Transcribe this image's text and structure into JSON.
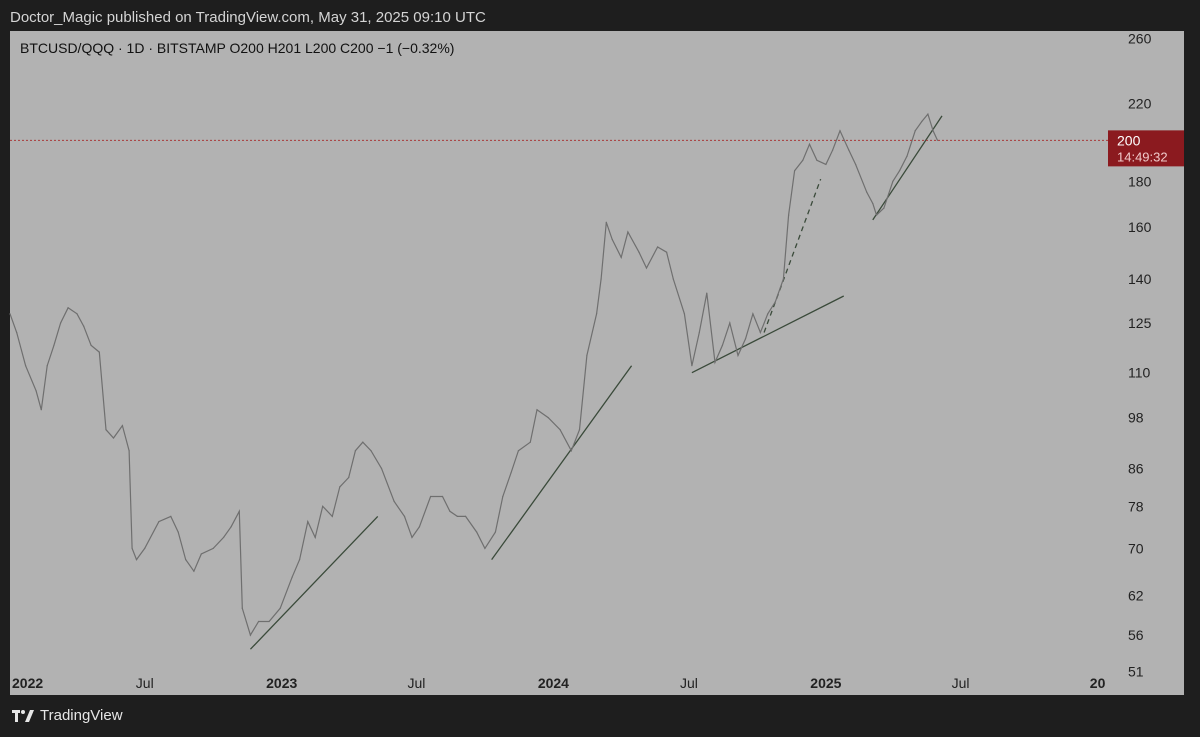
{
  "header": {
    "published": "Doctor_Magic published on TradingView.com, May 31, 2025 09:10 UTC"
  },
  "footer": {
    "brand": "TradingView",
    "logo_icon": "tradingview-logo-icon"
  },
  "colors": {
    "page_bg": "#1e1e1e",
    "chart_bg": "#b2b2b2",
    "price_line": "#6f6f6f",
    "trendline": "#3a4a3a",
    "last_price_bg": "#8b1a1f",
    "last_price_line": "#a83a3a"
  },
  "chart_data": {
    "type": "line",
    "title": "BTCUSD/QQQ · 1D · BITSTAMP  O200  H201  L200  C200  −1 (−0.32%)",
    "y_scale": "log",
    "ylim": [
      48,
      265
    ],
    "xlim": [
      "2022-01-01",
      "2026-01-15"
    ],
    "grid": false,
    "y_ticks": [
      260,
      220,
      200,
      180,
      160,
      140,
      125,
      110,
      98,
      86,
      78,
      70,
      62,
      56,
      51
    ],
    "x_ticks": [
      {
        "date": "2022-01-01",
        "label": "2022",
        "bold": true
      },
      {
        "date": "2022-07-01",
        "label": "Jul",
        "bold": false
      },
      {
        "date": "2023-01-01",
        "label": "2023",
        "bold": true
      },
      {
        "date": "2023-07-01",
        "label": "Jul",
        "bold": false
      },
      {
        "date": "2024-01-01",
        "label": "2024",
        "bold": true
      },
      {
        "date": "2024-07-01",
        "label": "Jul",
        "bold": false
      },
      {
        "date": "2025-01-01",
        "label": "2025",
        "bold": true
      },
      {
        "date": "2025-07-01",
        "label": "Jul",
        "bold": false
      },
      {
        "date": "2026-01-01",
        "label": "20",
        "bold": true
      }
    ],
    "last_price": {
      "value": 200,
      "label": "200",
      "countdown": "14:49:32"
    },
    "series": [
      {
        "values": [
          {
            "x": "2022-01-01",
            "y": 128
          },
          {
            "x": "2022-01-10",
            "y": 122
          },
          {
            "x": "2022-01-22",
            "y": 112
          },
          {
            "x": "2022-02-05",
            "y": 105
          },
          {
            "x": "2022-02-12",
            "y": 100
          },
          {
            "x": "2022-02-20",
            "y": 112
          },
          {
            "x": "2022-03-01",
            "y": 118
          },
          {
            "x": "2022-03-10",
            "y": 125
          },
          {
            "x": "2022-03-20",
            "y": 130
          },
          {
            "x": "2022-04-01",
            "y": 128
          },
          {
            "x": "2022-04-10",
            "y": 124
          },
          {
            "x": "2022-04-20",
            "y": 118
          },
          {
            "x": "2022-05-01",
            "y": 116
          },
          {
            "x": "2022-05-10",
            "y": 95
          },
          {
            "x": "2022-05-20",
            "y": 93
          },
          {
            "x": "2022-06-01",
            "y": 96
          },
          {
            "x": "2022-06-10",
            "y": 90
          },
          {
            "x": "2022-06-14",
            "y": 70
          },
          {
            "x": "2022-06-20",
            "y": 68
          },
          {
            "x": "2022-07-01",
            "y": 70
          },
          {
            "x": "2022-07-20",
            "y": 75
          },
          {
            "x": "2022-08-05",
            "y": 76
          },
          {
            "x": "2022-08-15",
            "y": 73
          },
          {
            "x": "2022-08-25",
            "y": 68
          },
          {
            "x": "2022-09-05",
            "y": 66
          },
          {
            "x": "2022-09-15",
            "y": 69
          },
          {
            "x": "2022-10-01",
            "y": 70
          },
          {
            "x": "2022-10-15",
            "y": 72
          },
          {
            "x": "2022-10-25",
            "y": 74
          },
          {
            "x": "2022-11-05",
            "y": 77
          },
          {
            "x": "2022-11-09",
            "y": 60
          },
          {
            "x": "2022-11-20",
            "y": 56
          },
          {
            "x": "2022-12-01",
            "y": 58
          },
          {
            "x": "2022-12-15",
            "y": 58
          },
          {
            "x": "2022-12-30",
            "y": 60
          },
          {
            "x": "2023-01-15",
            "y": 65
          },
          {
            "x": "2023-01-25",
            "y": 68
          },
          {
            "x": "2023-02-05",
            "y": 75
          },
          {
            "x": "2023-02-15",
            "y": 72
          },
          {
            "x": "2023-02-25",
            "y": 78
          },
          {
            "x": "2023-03-10",
            "y": 76
          },
          {
            "x": "2023-03-20",
            "y": 82
          },
          {
            "x": "2023-04-01",
            "y": 84
          },
          {
            "x": "2023-04-10",
            "y": 90
          },
          {
            "x": "2023-04-20",
            "y": 92
          },
          {
            "x": "2023-05-01",
            "y": 90
          },
          {
            "x": "2023-05-15",
            "y": 86
          },
          {
            "x": "2023-06-01",
            "y": 79
          },
          {
            "x": "2023-06-15",
            "y": 76
          },
          {
            "x": "2023-06-25",
            "y": 72
          },
          {
            "x": "2023-07-05",
            "y": 74
          },
          {
            "x": "2023-07-20",
            "y": 80
          },
          {
            "x": "2023-08-05",
            "y": 80
          },
          {
            "x": "2023-08-15",
            "y": 77
          },
          {
            "x": "2023-08-25",
            "y": 76
          },
          {
            "x": "2023-09-05",
            "y": 76
          },
          {
            "x": "2023-09-20",
            "y": 73
          },
          {
            "x": "2023-10-01",
            "y": 70
          },
          {
            "x": "2023-10-15",
            "y": 73
          },
          {
            "x": "2023-10-25",
            "y": 80
          },
          {
            "x": "2023-11-05",
            "y": 85
          },
          {
            "x": "2023-11-15",
            "y": 90
          },
          {
            "x": "2023-12-01",
            "y": 92
          },
          {
            "x": "2023-12-10",
            "y": 100
          },
          {
            "x": "2023-12-25",
            "y": 98
          },
          {
            "x": "2024-01-10",
            "y": 95
          },
          {
            "x": "2024-01-25",
            "y": 90
          },
          {
            "x": "2024-02-05",
            "y": 95
          },
          {
            "x": "2024-02-15",
            "y": 115
          },
          {
            "x": "2024-02-28",
            "y": 128
          },
          {
            "x": "2024-03-05",
            "y": 140
          },
          {
            "x": "2024-03-12",
            "y": 162
          },
          {
            "x": "2024-03-20",
            "y": 155
          },
          {
            "x": "2024-04-01",
            "y": 148
          },
          {
            "x": "2024-04-10",
            "y": 158
          },
          {
            "x": "2024-04-25",
            "y": 150
          },
          {
            "x": "2024-05-05",
            "y": 144
          },
          {
            "x": "2024-05-20",
            "y": 152
          },
          {
            "x": "2024-06-01",
            "y": 150
          },
          {
            "x": "2024-06-10",
            "y": 140
          },
          {
            "x": "2024-06-25",
            "y": 128
          },
          {
            "x": "2024-07-05",
            "y": 112
          },
          {
            "x": "2024-07-15",
            "y": 122
          },
          {
            "x": "2024-07-25",
            "y": 135
          },
          {
            "x": "2024-08-05",
            "y": 113
          },
          {
            "x": "2024-08-15",
            "y": 118
          },
          {
            "x": "2024-08-25",
            "y": 125
          },
          {
            "x": "2024-09-05",
            "y": 115
          },
          {
            "x": "2024-09-15",
            "y": 120
          },
          {
            "x": "2024-09-25",
            "y": 128
          },
          {
            "x": "2024-10-05",
            "y": 122
          },
          {
            "x": "2024-10-15",
            "y": 128
          },
          {
            "x": "2024-10-25",
            "y": 132
          },
          {
            "x": "2024-11-05",
            "y": 140
          },
          {
            "x": "2024-11-12",
            "y": 165
          },
          {
            "x": "2024-11-20",
            "y": 185
          },
          {
            "x": "2024-12-01",
            "y": 190
          },
          {
            "x": "2024-12-10",
            "y": 198
          },
          {
            "x": "2024-12-20",
            "y": 190
          },
          {
            "x": "2025-01-01",
            "y": 188
          },
          {
            "x": "2025-01-10",
            "y": 195
          },
          {
            "x": "2025-01-20",
            "y": 205
          },
          {
            "x": "2025-02-01",
            "y": 195
          },
          {
            "x": "2025-02-10",
            "y": 188
          },
          {
            "x": "2025-02-25",
            "y": 175
          },
          {
            "x": "2025-03-05",
            "y": 170
          },
          {
            "x": "2025-03-10",
            "y": 165
          },
          {
            "x": "2025-03-20",
            "y": 168
          },
          {
            "x": "2025-04-01",
            "y": 180
          },
          {
            "x": "2025-04-10",
            "y": 185
          },
          {
            "x": "2025-04-20",
            "y": 192
          },
          {
            "x": "2025-05-01",
            "y": 205
          },
          {
            "x": "2025-05-10",
            "y": 210
          },
          {
            "x": "2025-05-18",
            "y": 214
          },
          {
            "x": "2025-05-25",
            "y": 205
          },
          {
            "x": "2025-05-31",
            "y": 200
          }
        ]
      }
    ],
    "trendlines": [
      {
        "style": "solid",
        "points": [
          {
            "x": "2022-11-20",
            "y": 54
          },
          {
            "x": "2023-05-10",
            "y": 76
          }
        ]
      },
      {
        "style": "solid",
        "points": [
          {
            "x": "2023-10-10",
            "y": 68
          },
          {
            "x": "2024-04-15",
            "y": 112
          }
        ]
      },
      {
        "style": "solid",
        "points": [
          {
            "x": "2024-07-05",
            "y": 110
          },
          {
            "x": "2025-01-25",
            "y": 134
          }
        ]
      },
      {
        "style": "dashed",
        "points": [
          {
            "x": "2024-10-10",
            "y": 122
          },
          {
            "x": "2024-12-25",
            "y": 181
          }
        ]
      },
      {
        "style": "solid",
        "points": [
          {
            "x": "2025-03-05",
            "y": 163
          },
          {
            "x": "2025-06-06",
            "y": 213
          }
        ]
      }
    ]
  }
}
